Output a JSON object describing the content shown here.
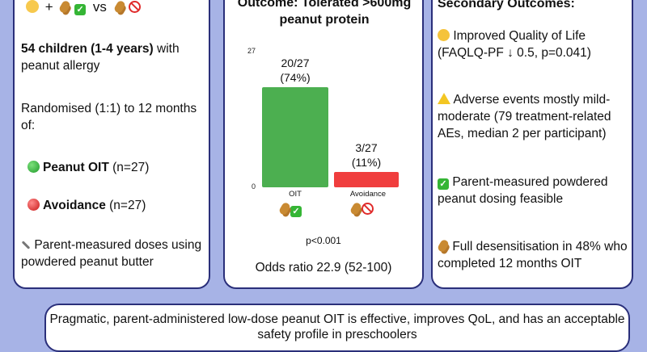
{
  "left": {
    "header_vs": "vs",
    "participants_bold": "54 children (1-4 years)",
    "participants_rest": " with peanut allergy",
    "randomised": "Randomised (1:1) to 12 months of:",
    "oit_label": "Peanut OIT",
    "oit_n": " (n=27)",
    "avoid_label": "Avoidance",
    "avoid_n": " (n=27)",
    "doses": "Parent-measured doses using powdered peanut butter"
  },
  "mid": {
    "title": "Outcome: Tolerated >600mg peanut protein",
    "chart_data": {
      "type": "bar",
      "categories": [
        "OIT",
        "Avoidance"
      ],
      "values": [
        20,
        3
      ],
      "value_labels": [
        "20/27\n(74%)",
        "3/27\n(11%)"
      ],
      "ylim": [
        0,
        27
      ],
      "yticks": [
        "27",
        "0"
      ],
      "colors": [
        "#4caf50",
        "#f03e3e"
      ]
    },
    "pvalue": "p<0.001",
    "odds": "Odds ratio 22.9 (52-100)"
  },
  "right": {
    "title": "Secondary Outcomes:",
    "qol": "Improved Quality of Life (FAQLQ-PF ↓ 0.5, p=0.041)",
    "ae": "Adverse events mostly mild-moderate (79 treatment-related AEs, median 2 per participant)",
    "dosing": "Parent-measured powdered peanut dosing feasible",
    "desens": "Full desensitisation in 48% who completed 12 months OIT"
  },
  "conclusion": "Pragmatic, parent-administered low-dose peanut OIT is effective, improves QoL, and has an acceptable safety profile in preschoolers"
}
